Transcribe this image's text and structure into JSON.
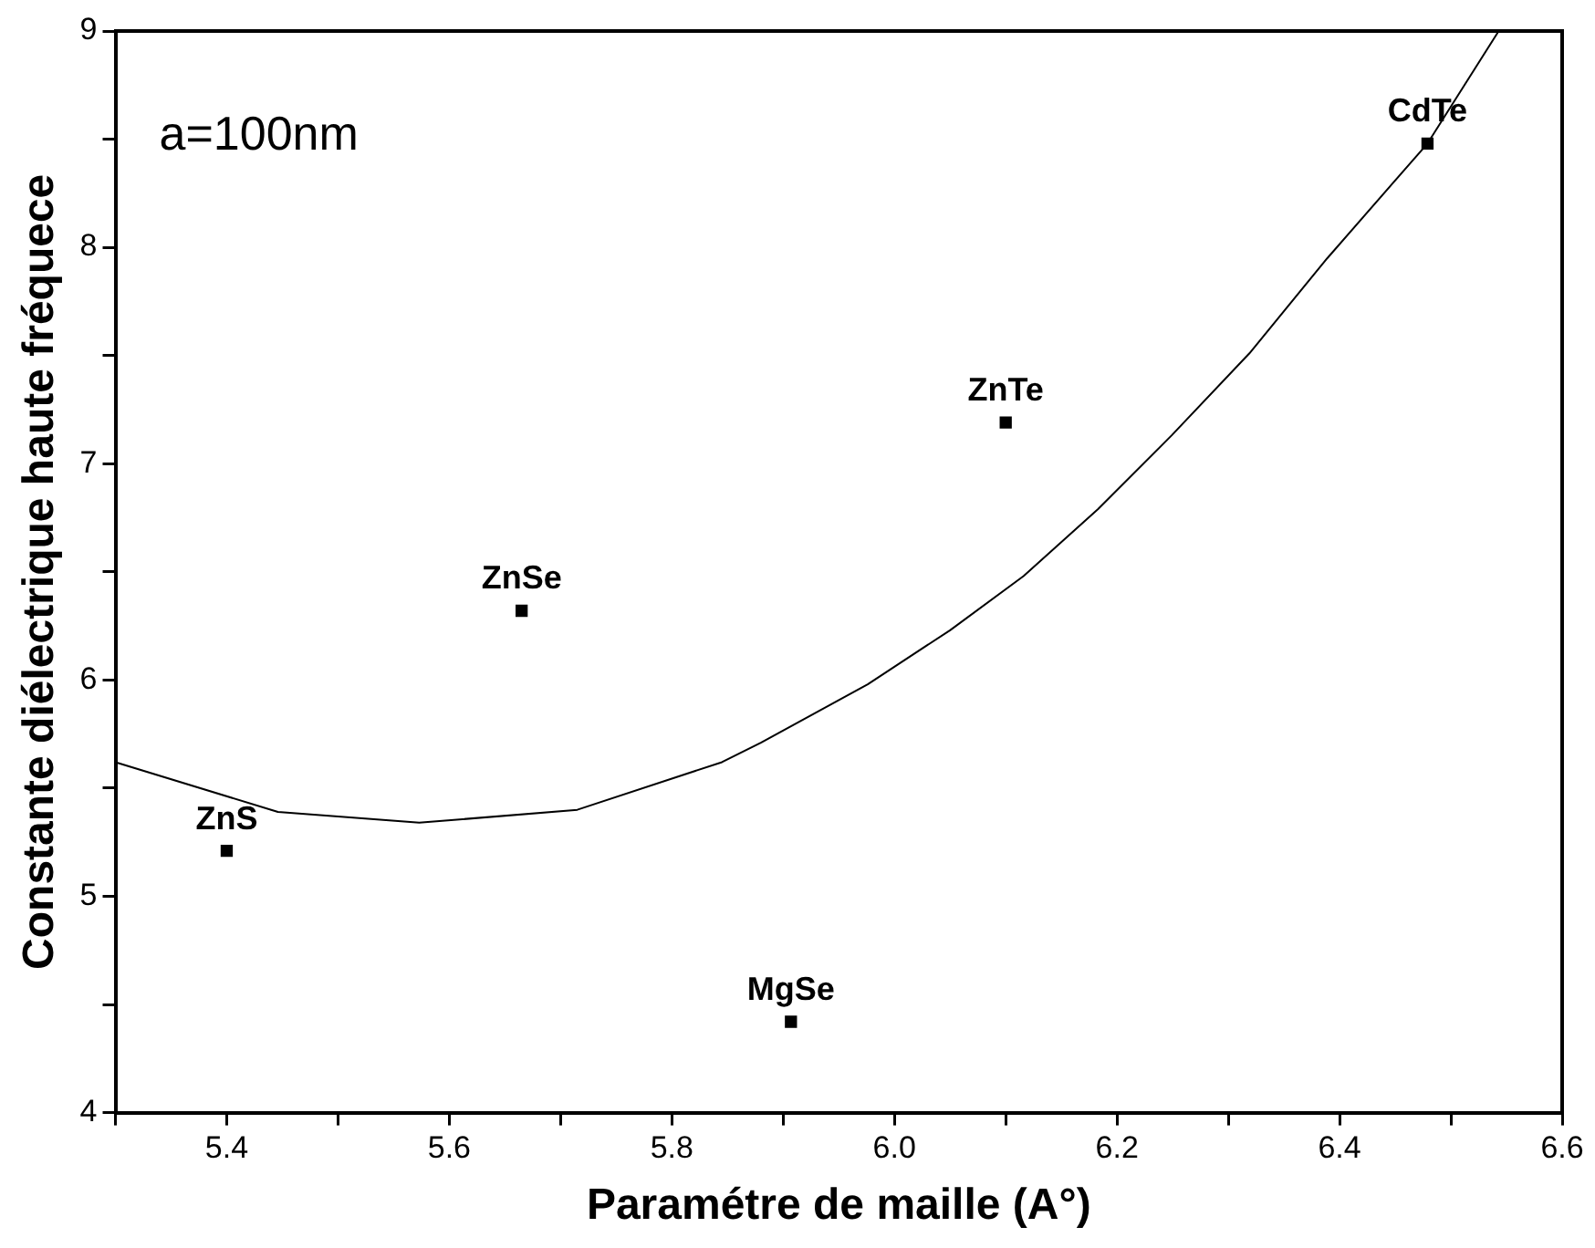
{
  "chart_data": {
    "type": "scatter",
    "xlabel": "Paramétre de maille (A°)",
    "ylabel": "Constante diélectrique haute fréquece",
    "x": [
      5.4,
      5.665,
      5.907,
      6.1,
      6.479
    ],
    "series": [
      {
        "type": "scatter",
        "color": "#000000",
        "marker": "square",
        "values": [
          5.21,
          6.32,
          4.42,
          7.19,
          8.48
        ]
      },
      {
        "type": "line",
        "color": "#000000",
        "marker": "none",
        "x": [
          5.3,
          5.446,
          5.573,
          5.715,
          5.845,
          5.88,
          5.976,
          6.05,
          6.116,
          6.183,
          6.249,
          6.319,
          6.389,
          6.479,
          6.543
        ],
        "values": [
          5.62,
          5.39,
          5.34,
          5.4,
          5.62,
          5.71,
          5.98,
          6.23,
          6.48,
          6.79,
          7.13,
          7.51,
          7.95,
          8.48,
          9.0
        ]
      }
    ],
    "xlim": [
      5.3,
      6.6
    ],
    "ylim": [
      4,
      9
    ],
    "xticks": [
      {
        "value": 5.3,
        "label": null
      },
      5.4,
      {
        "value": 5.5,
        "label": null
      },
      5.6,
      {
        "value": 5.7,
        "label": null
      },
      5.8,
      {
        "value": 5.9,
        "label": null
      },
      {
        "value": 6.0,
        "label": "6.0"
      },
      {
        "value": 6.1,
        "label": null
      },
      6.2,
      {
        "value": 6.3,
        "label": null
      },
      6.4,
      {
        "value": 6.5,
        "label": null
      },
      6.6
    ],
    "yticks": [
      4,
      {
        "value": 4.5,
        "label": null
      },
      5,
      {
        "value": 5.5,
        "label": null
      },
      6,
      {
        "value": 6.5,
        "label": null
      },
      7,
      {
        "value": 7.5,
        "label": null
      },
      8,
      {
        "value": 8.5,
        "label": null
      },
      9
    ],
    "grid": false,
    "legend": false,
    "annotations": [
      "a=100nm",
      {
        "text": "ZnS",
        "x": 5.4,
        "y": 5.21
      },
      {
        "text": "ZnSe",
        "x": 5.665,
        "y": 6.32
      },
      {
        "text": "MgSe",
        "x": 5.907,
        "y": 4.42
      },
      {
        "text": "ZnTe",
        "x": 6.1,
        "y": 7.19
      },
      {
        "text": "CdTe",
        "x": 6.479,
        "y": 8.48
      }
    ]
  }
}
